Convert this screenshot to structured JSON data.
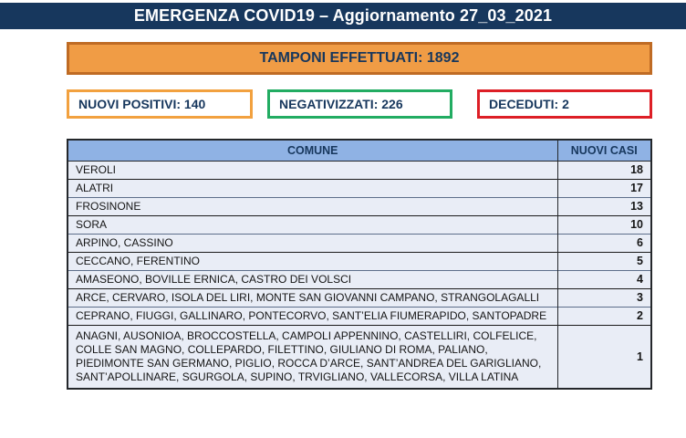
{
  "header": {
    "title": "EMERGENZA COVID19 – Aggiornamento 27_03_2021"
  },
  "summary": {
    "tamponi_label": "TAMPONI EFFETTUATI: 1892",
    "stats": [
      {
        "id": "nuovi-positivi",
        "label": "NUOVI POSITIVI: 140",
        "border_color": "#F2A13F"
      },
      {
        "id": "negativizzati",
        "label": "NEGATIVIZZATI: 226",
        "border_color": "#22AC62"
      },
      {
        "id": "deceduti",
        "label": "DECEDUTI: 2",
        "border_color": "#DD1F26"
      }
    ]
  },
  "table": {
    "columns": [
      "COMUNE",
      "NUOVI CASI"
    ],
    "rows": [
      {
        "comune": "VEROLI",
        "casi": "18"
      },
      {
        "comune": "ALATRI",
        "casi": "17"
      },
      {
        "comune": "FROSINONE",
        "casi": "13"
      },
      {
        "comune": "SORA",
        "casi": "10"
      },
      {
        "comune": "ARPINO, CASSINO",
        "casi": "6"
      },
      {
        "comune": "CECCANO, FERENTINO",
        "casi": "5"
      },
      {
        "comune": "AMASEONO, BOVILLE ERNICA, CASTRO DEI VOLSCI",
        "casi": "4"
      },
      {
        "comune": "ARCE, CERVARO, ISOLA DEL LIRI, MONTE SAN GIOVANNI CAMPANO, STRANGOLAGALLI",
        "casi": "3"
      },
      {
        "comune": "CEPRANO, FIUGGI, GALLINARO, PONTECORVO, SANT’ELIA FIUMERAPIDO, SANTOPADRE",
        "casi": "2"
      },
      {
        "comune": "ANAGNI, AUSONIOA, BROCCOSTELLA, CAMPOLI APPENNINO, CASTELLIRI, COLFELICE, COLLE SAN MAGNO, COLLEPARDO, FILETTINO, GIULIANO DI ROMA, PALIANO, PIEDIMONTE SAN GERMANO, PIGLIO, ROCCA D’ARCE, SANT’ANDREA DEL GARIGLIANO, SANT’APOLLINARE, SGURGOLA, SUPINO, TRVIGLIANO, VALLECORSA, VILLA LATINA",
        "casi": "1"
      }
    ]
  },
  "colors": {
    "header_bg": "#17375D",
    "banner_bg": "#F09C45",
    "banner_border": "#BF6B24",
    "table_header_bg": "#8FB2E4",
    "row_bg": "#E9EDF6",
    "text_navy": "#17375D"
  }
}
